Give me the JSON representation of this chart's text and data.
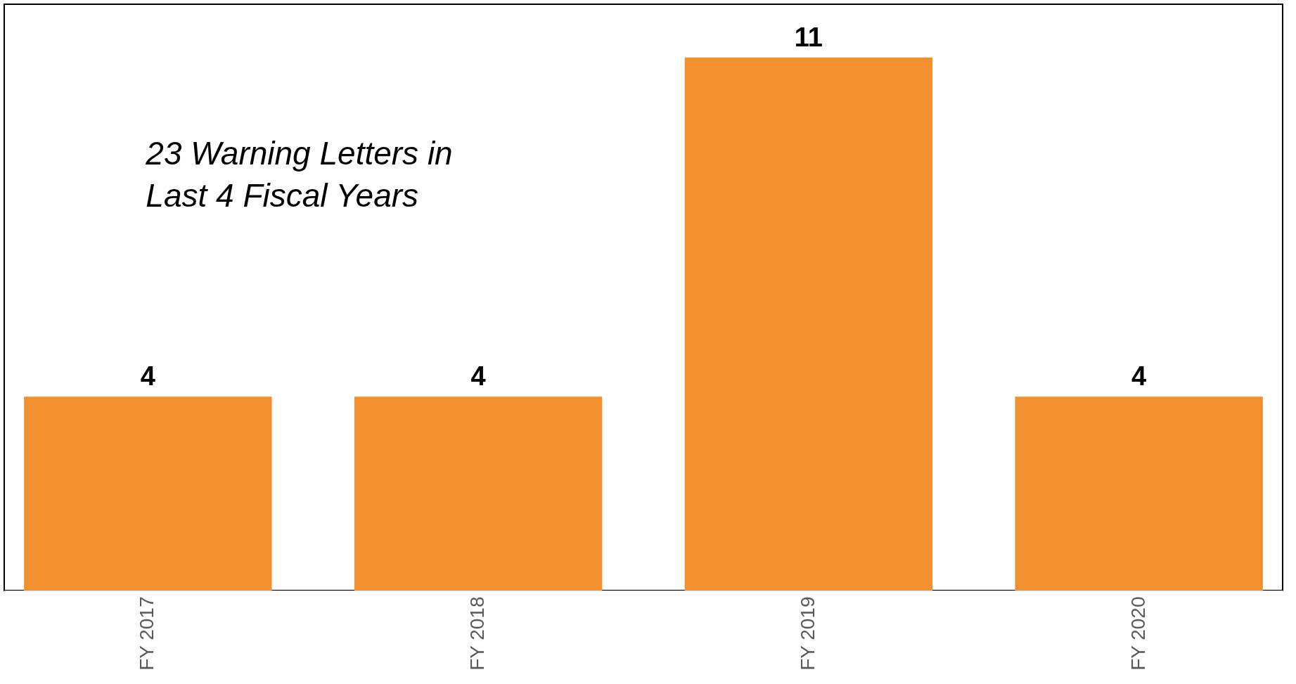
{
  "chart_data": {
    "type": "bar",
    "categories": [
      "FY 2017",
      "FY 2018",
      "FY 2019",
      "FY 2020"
    ],
    "values": [
      4,
      4,
      11,
      4
    ],
    "color": "#f28f2e",
    "data_labels": true,
    "grid": false,
    "annotations": [
      "23 Warning Letters in\nLast 4 Fiscal Years"
    ]
  }
}
